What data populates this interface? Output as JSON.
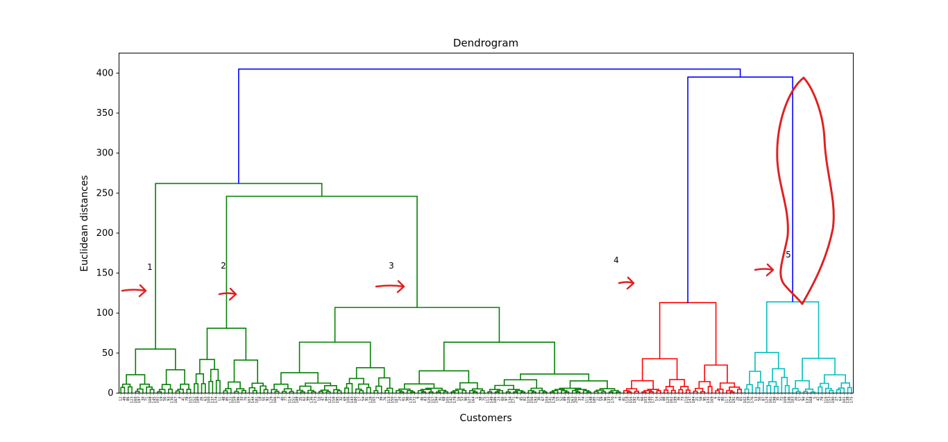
{
  "chart_data": {
    "type": "dendrogram",
    "title": "Dendrogram",
    "xlabel": "Customers",
    "ylabel": "Euclidean distances",
    "ylim": [
      0,
      425
    ],
    "yticks": [
      0,
      50,
      100,
      150,
      200,
      250,
      300,
      350,
      400
    ],
    "leaf_count": 200,
    "colors": {
      "cluster_1_2_3": "#008000",
      "cluster_4": "#ff0000",
      "cluster_5": "#00bfbf",
      "above_threshold": "#0000ff",
      "annotation": "#e02020"
    },
    "clusters": [
      {
        "label": "1",
        "color": "#008000",
        "root_height": 55
      },
      {
        "label": "2",
        "color": "#008000",
        "root_height": 81
      },
      {
        "label": "3",
        "color": "#008000",
        "root_height": 107
      },
      {
        "label": "4",
        "color": "#ff0000",
        "root_height": 113
      },
      {
        "label": "5",
        "color": "#00bfbf",
        "root_height": 114
      }
    ],
    "merges": [
      {
        "clusters": [
          "2",
          "3"
        ],
        "height": 246,
        "color": "#008000"
      },
      {
        "clusters": [
          "1",
          "2+3"
        ],
        "height": 262,
        "color": "#008000"
      },
      {
        "clusters": [
          "4",
          "5"
        ],
        "height": 395,
        "color": "#0000ff"
      },
      {
        "clusters": [
          "1+2+3",
          "4+5"
        ],
        "height": 405,
        "color": "#0000ff"
      }
    ],
    "annotations": [
      "1",
      "2",
      "3",
      "4",
      "5"
    ],
    "grid": false,
    "legend": "none"
  }
}
